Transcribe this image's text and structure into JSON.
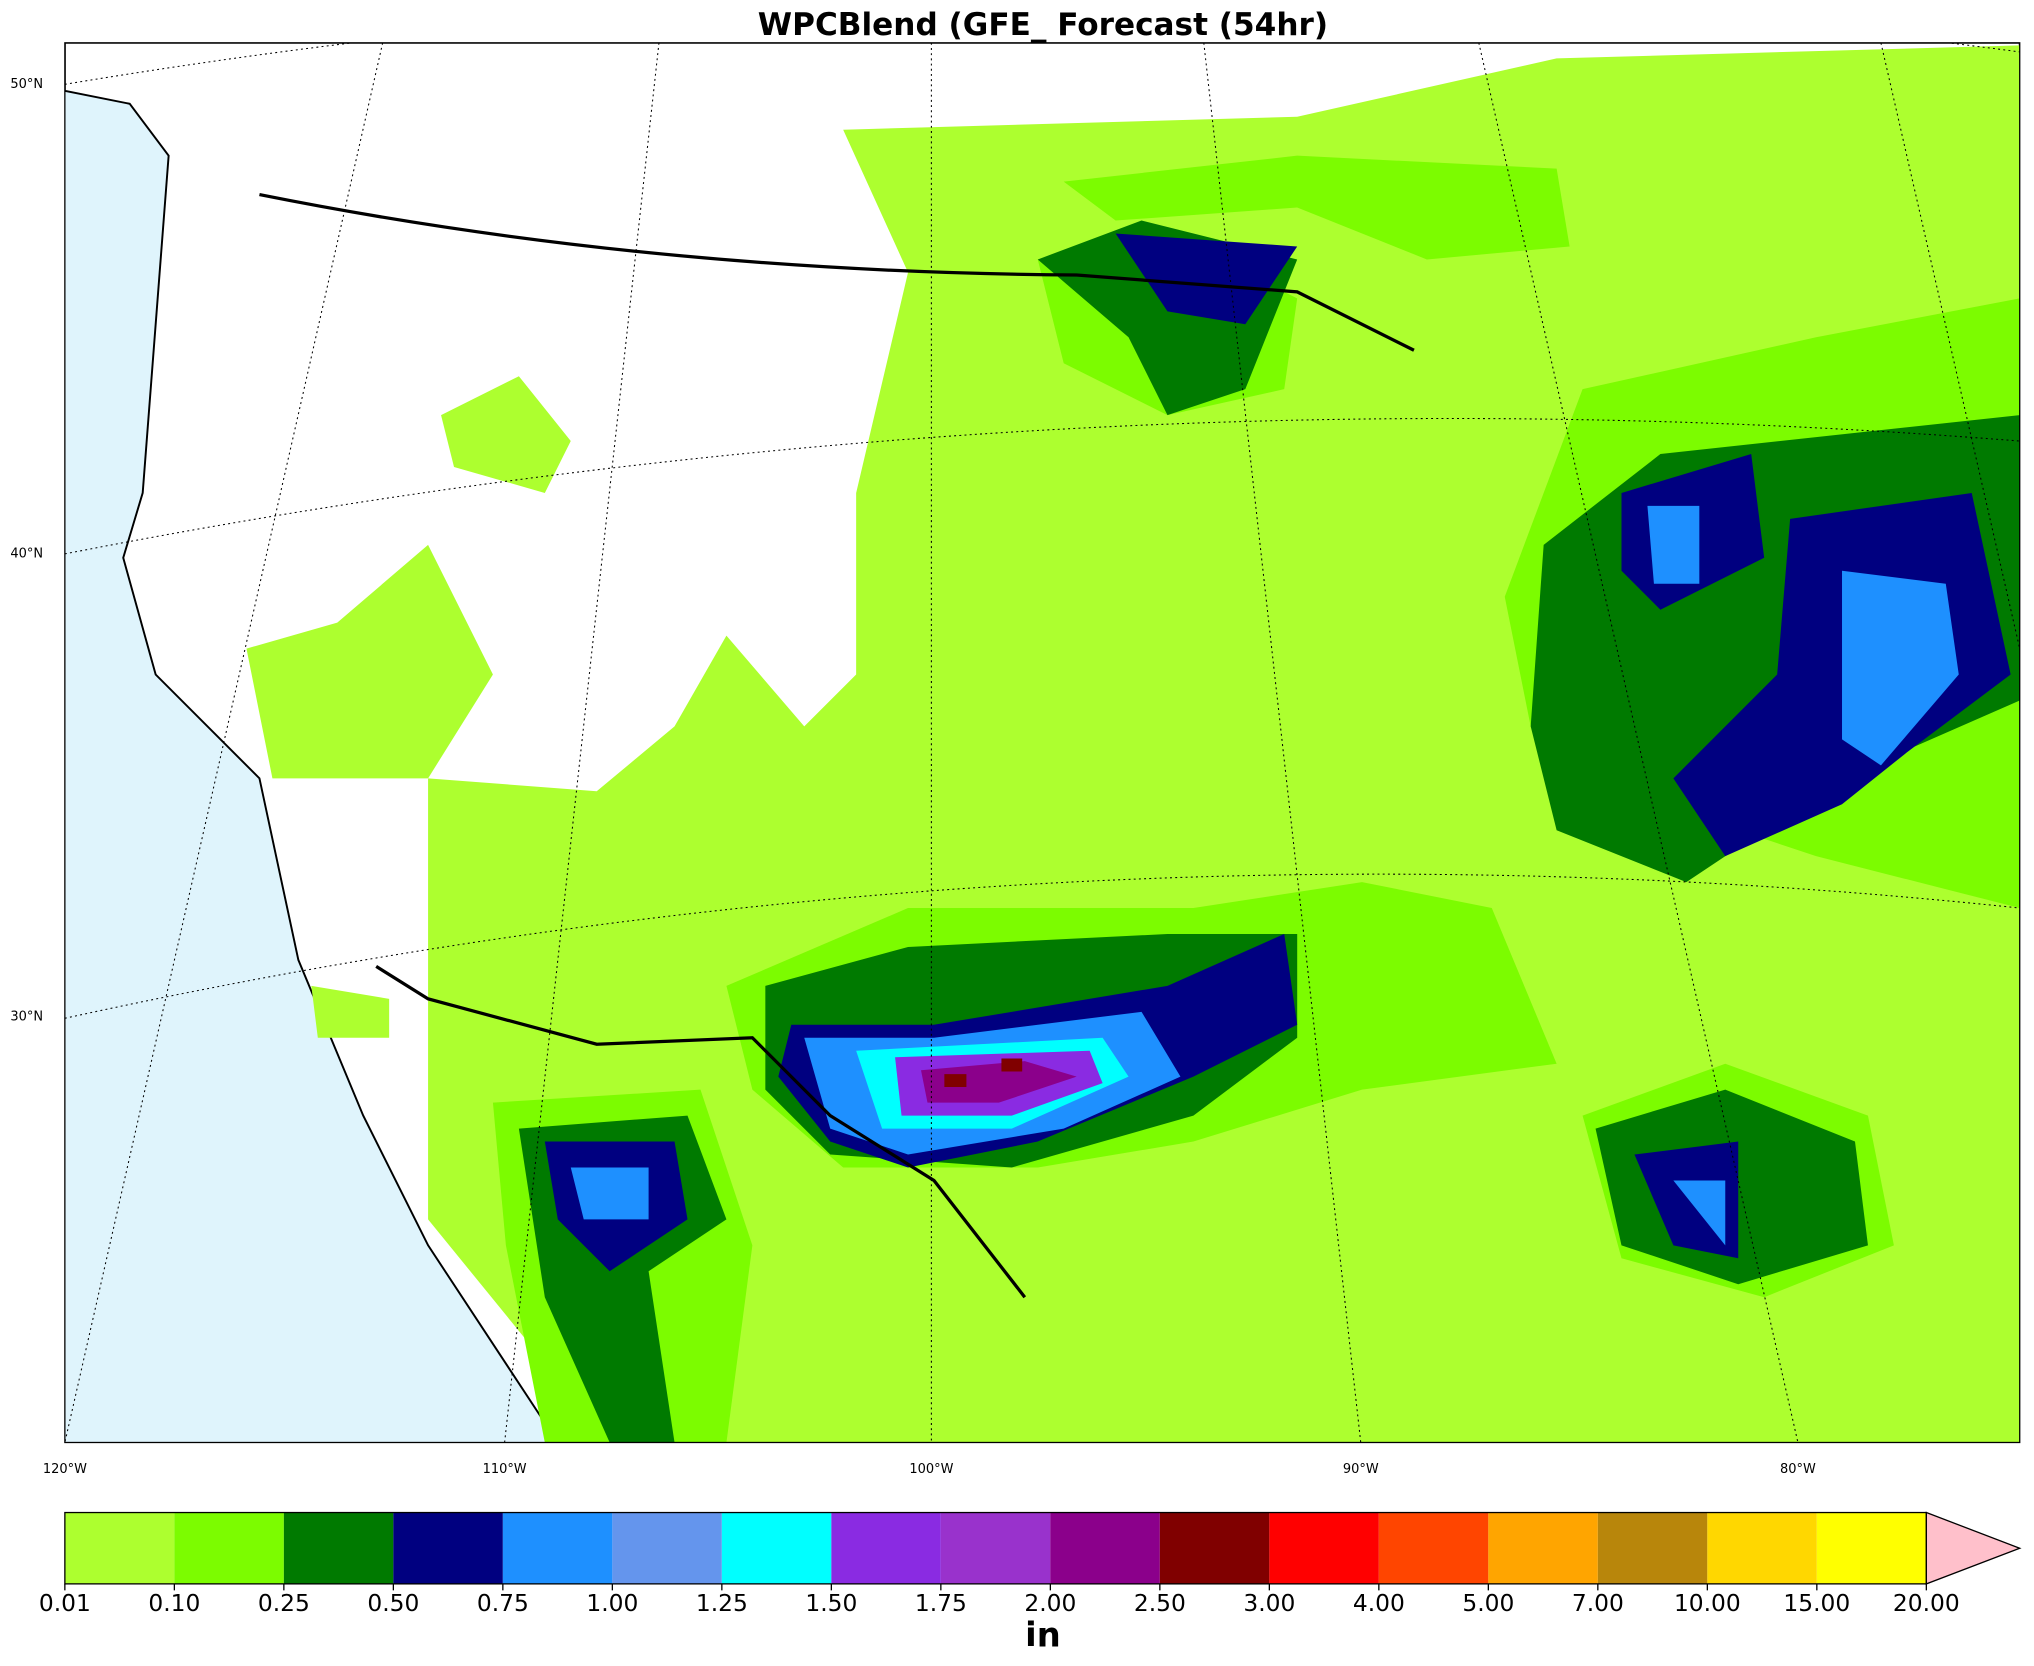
{
  "map": {
    "title": "WPCBlend (GFE_ Forecast (54hr)",
    "lat_labels": [
      "50°N",
      "40°N",
      "30°N"
    ],
    "lon_labels": [
      "120°W",
      "110°W",
      "100°W",
      "90°W",
      "80°W"
    ],
    "colorbar": {
      "levels": [
        {
          "value": 0.01,
          "label": "0.01"
        },
        {
          "value": 0.1,
          "label": "0.10"
        },
        {
          "value": 0.25,
          "label": "0.25"
        },
        {
          "value": 0.5,
          "label": "0.50"
        },
        {
          "value": 0.75,
          "label": "0.75"
        },
        {
          "value": 1,
          "label": "1.00"
        },
        {
          "value": 1.25,
          "label": "1.25"
        },
        {
          "value": 1.5,
          "label": "1.50"
        },
        {
          "value": 1.75,
          "label": "1.75"
        },
        {
          "value": 2,
          "label": "2.00"
        },
        {
          "value": 2.5,
          "label": "2.50"
        },
        {
          "value": 3,
          "label": "3.00"
        },
        {
          "value": 4,
          "label": "4.00"
        },
        {
          "value": 5,
          "label": "5.00"
        },
        {
          "value": 7,
          "label": "7.00"
        },
        {
          "value": 10,
          "label": "10.00"
        },
        {
          "value": 15,
          "label": "15.00"
        },
        {
          "value": 20,
          "label": "20.00"
        }
      ],
      "colors": [
        "#adff2f",
        "#7cfc00",
        "#007a00",
        "#000080",
        "#1e90ff",
        "#6495ed",
        "#00ffff",
        "#8a2be2",
        "#9932cc",
        "#8b008b",
        "#800000",
        "#ff0000",
        "#ff4500",
        "#ffa500",
        "#b8860b",
        "#ffd700",
        "#ffff00"
      ],
      "extend_color": "#ffc0cb",
      "label": "in"
    }
  }
}
